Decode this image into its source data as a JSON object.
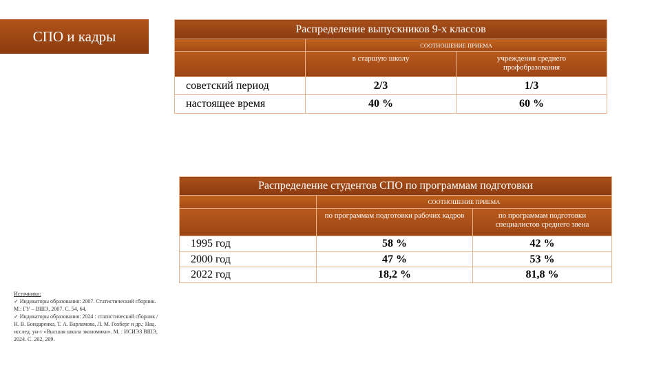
{
  "header": {
    "title": "СПО и кадры"
  },
  "tables": [
    {
      "title": "Распределение выпускников 9-х классов",
      "subtitle": "СООТНОШЕНИЕ ПРИЕМА",
      "columns": [
        "в старшую школу",
        "учреждения среднего профобразования"
      ],
      "rows": [
        [
          "советский период",
          "2/3",
          "1/3"
        ],
        [
          "настоящее время",
          "40 %",
          "60 %"
        ]
      ]
    },
    {
      "title": "Распределение студентов СПО по программам подготовки",
      "subtitle": "СООТНОШЕНИЕ ПРИЕМА",
      "columns": [
        "по программам подготовки рабочих кадров",
        "по программам подготовки специалистов среднего звена"
      ],
      "rows": [
        [
          "1995 год",
          "58 %",
          "42 %"
        ],
        [
          "2000 год",
          "47 %",
          "53 %"
        ],
        [
          "2022 год",
          "18,2 %",
          "81,8 %"
        ]
      ]
    }
  ],
  "sources": {
    "heading": "Источники:",
    "items": [
      "✓ Индикаторы образования: 2007. Статистический сборник.  М.: ГУ – ВШЭ, 2007.  С. 54, 64.",
      "✓ Индикаторы образования: 2024 : статистический сборник / Н. В. Бондаренко, Т. А. Варламова, Л. М. Гохберг и др.; Нац. исслед. ун-т «Высшая школа экономики».  М. : ИСИЭЗ ВШЭ, 2024. С. 202, 209."
    ]
  }
}
